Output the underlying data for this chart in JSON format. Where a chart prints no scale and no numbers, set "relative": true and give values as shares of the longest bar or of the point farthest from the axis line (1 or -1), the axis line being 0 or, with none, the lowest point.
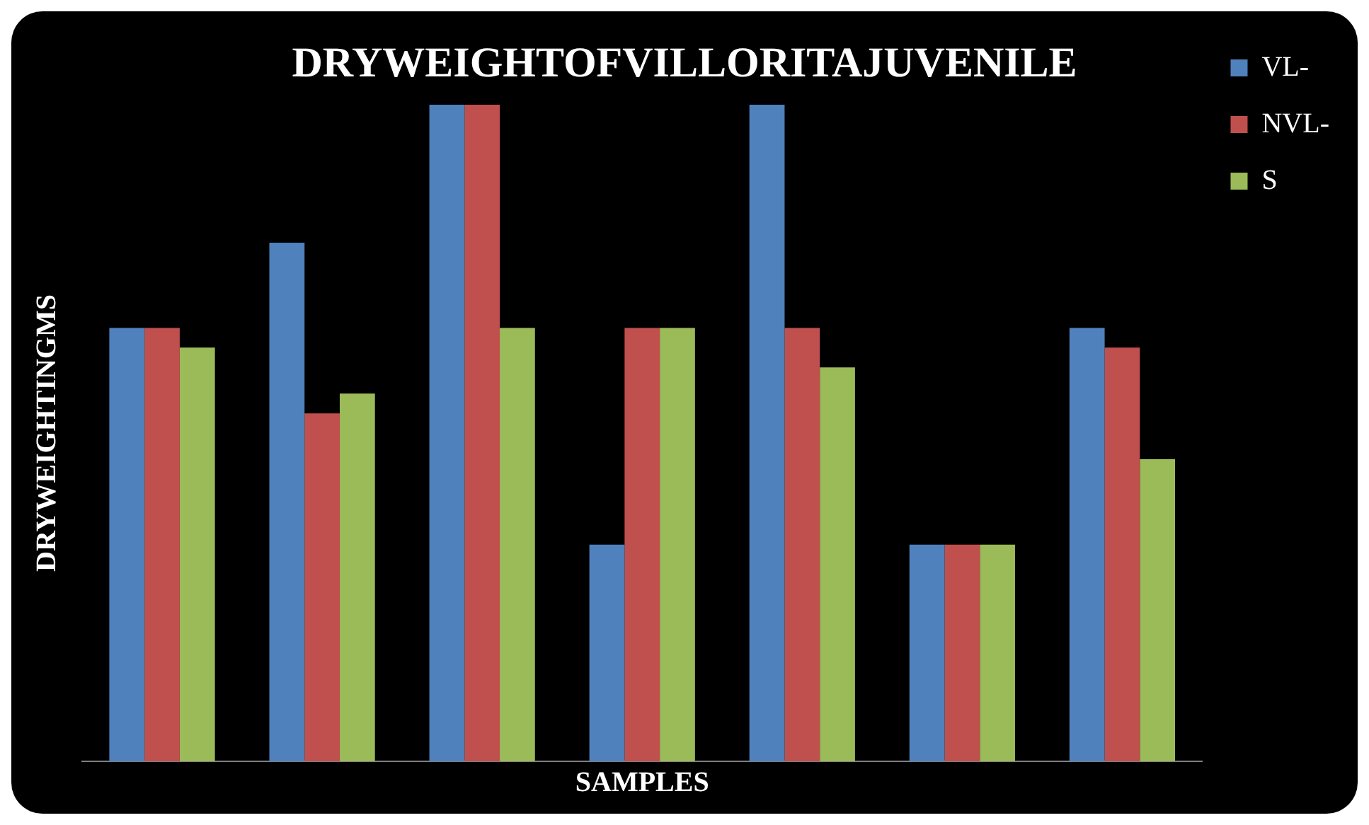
{
  "chart_data": {
    "type": "bar",
    "title": "DRYWEIGHTOFVILLORITAJUVENILE",
    "xlabel": "SAMPLES",
    "ylabel": "DRYWEIGHTINGMS",
    "relative": true,
    "legend": "top right",
    "grid": false,
    "categories": [
      null,
      null,
      null,
      null,
      null,
      null,
      null
    ],
    "series": [
      {
        "name": "VL-",
        "color": "#4f81bd",
        "values": [
          0.66,
          0.79,
          1,
          0.33,
          1,
          0.33,
          0.66
        ]
      },
      {
        "name": "NVL-",
        "color": "#c0504d",
        "values": [
          0.66,
          0.53,
          1,
          0.66,
          0.66,
          0.33,
          0.63
        ]
      },
      {
        "name": "S",
        "color": "#9bbb59",
        "values": [
          0.63,
          0.56,
          0.66,
          0.66,
          0.6,
          0.33,
          0.46
        ]
      }
    ]
  }
}
